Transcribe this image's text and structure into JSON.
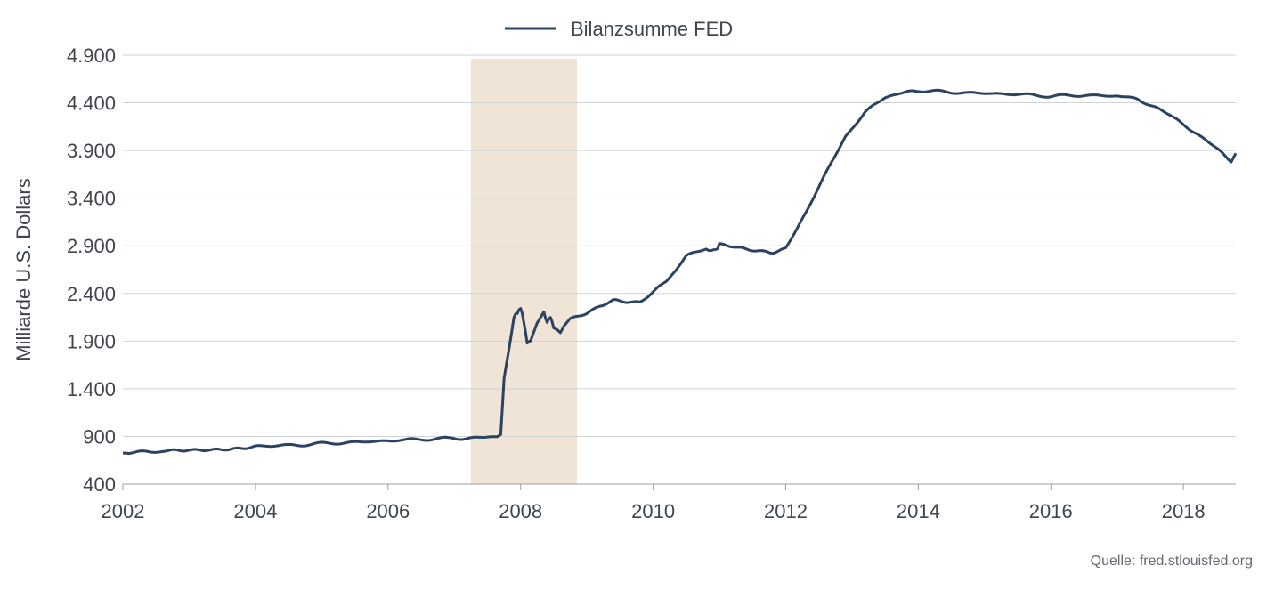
{
  "chart_data": {
    "type": "line",
    "ylabel": "Milliarde U.S. Dollars",
    "xlabel": "",
    "xlim": [
      2002,
      2018.79
    ],
    "ylim": [
      400,
      4900
    ],
    "x_ticks": [
      2002,
      2004,
      2006,
      2008,
      2010,
      2012,
      2014,
      2016,
      2018
    ],
    "x_tick_labels": [
      "2002",
      "2004",
      "2006",
      "2008",
      "2010",
      "2012",
      "2014",
      "2016",
      "2018"
    ],
    "y_ticks": [
      400,
      900,
      1400,
      1900,
      2400,
      2900,
      3400,
      3900,
      4400,
      4900
    ],
    "y_tick_labels": [
      "400",
      "900",
      "1.400",
      "1.900",
      "2.400",
      "2.900",
      "3.400",
      "3.900",
      "4.400",
      "4.900"
    ],
    "grid": true,
    "legend_position": "top-center",
    "shaded_regions": [
      {
        "x_start": 2007.25,
        "x_end": 2008.85,
        "color": "#efe4d6"
      }
    ],
    "series": [
      {
        "name": "Bilanzsumme FED",
        "color": "#2b4360",
        "x": [
          2002.0,
          2002.3,
          2002.6,
          2003.0,
          2003.4,
          2003.8,
          2004.0,
          2004.5,
          2005.0,
          2005.5,
          2006.0,
          2006.5,
          2007.0,
          2007.3,
          2007.6,
          2007.7,
          2007.75,
          2007.82,
          2007.9,
          2007.95,
          2008.0,
          2008.05,
          2008.1,
          2008.15,
          2008.25,
          2008.35,
          2008.4,
          2008.45,
          2008.5,
          2008.6,
          2008.7,
          2008.8,
          2009.0,
          2009.2,
          2009.4,
          2009.6,
          2009.8,
          2010.0,
          2010.2,
          2010.5,
          2010.8,
          2010.95,
          2011.0,
          2011.2,
          2011.4,
          2011.6,
          2011.8,
          2012.0,
          2012.3,
          2012.6,
          2012.9,
          2013.2,
          2013.5,
          2013.8,
          2014.0,
          2014.5,
          2015.0,
          2015.5,
          2016.0,
          2016.5,
          2017.0,
          2017.3,
          2017.6,
          2017.9,
          2018.2,
          2018.5,
          2018.72,
          2018.79
        ],
        "y": [
          725,
          735,
          745,
          755,
          765,
          780,
          800,
          805,
          825,
          838,
          855,
          870,
          880,
          885,
          890,
          905,
          1500,
          1800,
          2150,
          2200,
          2250,
          2100,
          1880,
          1900,
          2080,
          2200,
          2100,
          2150,
          2050,
          2000,
          2100,
          2150,
          2200,
          2270,
          2330,
          2310,
          2300,
          2410,
          2530,
          2790,
          2870,
          2850,
          2920,
          2900,
          2870,
          2850,
          2830,
          2870,
          3250,
          3650,
          4050,
          4300,
          4460,
          4520,
          4530,
          4510,
          4500,
          4490,
          4470,
          4480,
          4470,
          4440,
          4350,
          4220,
          4080,
          3920,
          3780,
          3870
        ]
      }
    ]
  },
  "source_note": "Quelle: fred.stlouisfed.org"
}
